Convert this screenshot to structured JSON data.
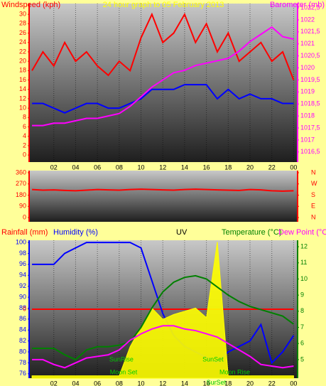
{
  "chart_data": [
    {
      "type": "line",
      "title": "24 hour graph to 05 February 2013",
      "ylabel": "Windspeed (kph)",
      "y2label": "Barometer (mb)",
      "x": [
        0,
        1,
        2,
        3,
        4,
        5,
        6,
        7,
        8,
        9,
        10,
        11,
        12,
        13,
        14,
        15,
        16,
        17,
        18,
        19,
        20,
        21,
        22,
        23,
        24
      ],
      "xlim": [
        -0.2,
        24.3
      ],
      "xticks": [
        {
          "value": 2,
          "label": "02"
        },
        {
          "value": 4,
          "label": "04"
        },
        {
          "value": 6,
          "label": "06"
        },
        {
          "value": 8,
          "label": "08"
        },
        10,
        12,
        14,
        16,
        18,
        20,
        22,
        {
          "value": 24,
          "label": "00"
        }
      ],
      "ylim": [
        -1.5,
        32.3
      ],
      "yticks": [
        0,
        2,
        4,
        6,
        8,
        10,
        12,
        14,
        16,
        18,
        20,
        22,
        24,
        26,
        28,
        30
      ],
      "y2lim": [
        1016.08,
        1022.68
      ],
      "y2ticks": [
        {
          "value": 1016.5,
          "label": "1016,5"
        },
        1017,
        {
          "value": 1017.5,
          "label": "1017,5"
        },
        1018,
        {
          "value": 1018.5,
          "label": "1018,5"
        },
        1019,
        {
          "value": 1019.5,
          "label": "1019,5"
        },
        1020,
        {
          "value": 1020.5,
          "label": "1020,5"
        },
        1021,
        {
          "value": 1021.5,
          "label": "1021,5"
        },
        1022,
        {
          "value": 1022.5,
          "label": "1022,5"
        }
      ],
      "ytick_color": "#ff0000",
      "y2tick_color": "#ff00ff",
      "grid": true,
      "series": [
        {
          "color": "#ff0000",
          "values": [
            18,
            22,
            19,
            24,
            20,
            22,
            19,
            17,
            20,
            18,
            25,
            30,
            24,
            26,
            30,
            24,
            28,
            22,
            26,
            20,
            22,
            24,
            20,
            22,
            16
          ]
        },
        {
          "color": "#0000ff",
          "values": [
            11,
            11,
            10,
            9,
            10,
            11,
            11,
            10,
            10,
            11,
            12,
            14,
            14,
            14,
            15,
            15,
            15,
            12,
            14,
            12,
            13,
            12,
            12,
            11,
            11
          ]
        },
        {
          "color": "#ff00ff",
          "axis": "y2",
          "values": [
            1017.6,
            1017.6,
            1017.7,
            1017.7,
            1017.8,
            1017.9,
            1017.9,
            1018.0,
            1018.1,
            1018.4,
            1018.8,
            1019.2,
            1019.5,
            1019.8,
            1019.9,
            1020.1,
            1020.2,
            1020.3,
            1020.4,
            1020.7,
            1021.1,
            1021.4,
            1021.7,
            1021.3,
            1021.2
          ]
        }
      ]
    },
    {
      "type": "line",
      "x": [
        0,
        1,
        2,
        3,
        4,
        5,
        6,
        7,
        8,
        9,
        10,
        11,
        12,
        13,
        14,
        15,
        16,
        17,
        18,
        19,
        20,
        21,
        22,
        23,
        24
      ],
      "xlim": [
        -0.2,
        24.3
      ],
      "ylim": [
        -34,
        377
      ],
      "yticks": [
        0,
        90,
        180,
        270,
        360
      ],
      "y2lim": [
        -34,
        377
      ],
      "y2ticks": [
        {
          "value": 360,
          "label": "N"
        },
        {
          "value": 270,
          "label": "W"
        },
        {
          "value": 180,
          "label": "S"
        },
        {
          "value": 90,
          "label": "E"
        },
        {
          "value": 0,
          "label": "N"
        }
      ],
      "ytick_color": "#ff0000",
      "y2tick_color": "#ff0000",
      "grid": true,
      "series": [
        {
          "color": "#ff0000",
          "values": [
            225,
            220,
            222,
            218,
            215,
            220,
            225,
            222,
            220,
            225,
            228,
            225,
            222,
            220,
            225,
            228,
            225,
            222,
            220,
            218,
            225,
            222,
            215,
            212,
            215
          ]
        }
      ]
    },
    {
      "type": "line",
      "x": [
        0,
        1,
        2,
        3,
        4,
        5,
        6,
        7,
        8,
        9,
        10,
        11,
        12,
        13,
        14,
        15,
        16,
        17,
        18,
        19,
        20,
        21,
        22,
        23,
        24
      ],
      "xlim": [
        -0.2,
        24.3
      ],
      "xticks": [
        {
          "value": 2,
          "label": "02"
        },
        {
          "value": 4,
          "label": "04"
        },
        {
          "value": 6,
          "label": "06"
        },
        {
          "value": 8,
          "label": "08"
        },
        10,
        12,
        14,
        16,
        18,
        20,
        22,
        {
          "value": 24,
          "label": "00"
        }
      ],
      "ylim": [
        75.2,
        100.4
      ],
      "yticks": [
        76,
        78,
        80,
        82,
        84,
        86,
        88,
        90,
        92,
        94,
        96,
        98,
        100
      ],
      "y2lim": [
        3.85,
        12.4
      ],
      "y2ticks": [
        5,
        6,
        7,
        8,
        9,
        10,
        11,
        12
      ],
      "y3lim": [
        -1,
        1
      ],
      "y3ticks": [
        0
      ],
      "ytick_color": "#0000ff",
      "y2tick_color": "#008000",
      "y3tick_color": "#ff0000",
      "grid": true,
      "series": [
        {
          "name": "Rainfall (mm)",
          "color": "#ff0000",
          "axis": "y3",
          "values": [
            0,
            0,
            0,
            0,
            0,
            0,
            0,
            0,
            0,
            0,
            0,
            0,
            0,
            0,
            0,
            0,
            0,
            0,
            0,
            0,
            0,
            0,
            0,
            0,
            0
          ]
        },
        {
          "name": "Humidity (%)",
          "color": "#0000ff",
          "values": [
            96,
            96,
            96,
            98,
            99,
            100,
            100,
            100,
            100,
            100,
            99,
            93,
            87,
            83,
            81,
            80,
            79,
            78,
            80,
            81,
            82,
            85,
            78,
            80,
            83
          ]
        },
        {
          "name": "UV",
          "color": "#ffff00",
          "axis": "y2",
          "area": true,
          "values": [
            4,
            4,
            4,
            4,
            4,
            4,
            4,
            4,
            4,
            5.8,
            7.0,
            8.2,
            7.5,
            7.8,
            8.0,
            8.2,
            7.6,
            12.3,
            4,
            4,
            4,
            4,
            4,
            4,
            4
          ]
        },
        {
          "name": "Temperature (°C)",
          "color": "#008000",
          "axis": "y2",
          "values": [
            5.7,
            5.7,
            5.7,
            5.3,
            5.0,
            5.6,
            5.8,
            5.8,
            5.9,
            6.1,
            7.0,
            8.2,
            9.2,
            9.8,
            10.1,
            10.2,
            10.0,
            9.5,
            9.0,
            8.6,
            8.3,
            8.1,
            7.9,
            7.7,
            7.2
          ]
        },
        {
          "name": "Dew Point (°C",
          "color": "#ff00ff",
          "axis": "y2",
          "values": [
            5.0,
            5.0,
            4.7,
            4.5,
            4.8,
            5.1,
            5.2,
            5.3,
            5.6,
            6.2,
            6.6,
            6.9,
            7.1,
            7.1,
            6.9,
            6.8,
            6.6,
            6.4,
            6.0,
            5.6,
            5.2,
            4.7,
            4.6,
            4.5,
            4.6
          ]
        }
      ],
      "annotations": [
        {
          "text": "SunRise",
          "x": 8.2,
          "y": 5.0
        },
        {
          "text": "SunSet",
          "x": 16.6,
          "y": 5.0
        },
        {
          "text": "Moon Set",
          "x": 8.4,
          "y": 4.2
        },
        {
          "text": "Moon Rise",
          "x": 18.6,
          "y": 4.2
        },
        {
          "text": "SurSet",
          "x": 16.9,
          "y": 3.55
        }
      ]
    }
  ]
}
